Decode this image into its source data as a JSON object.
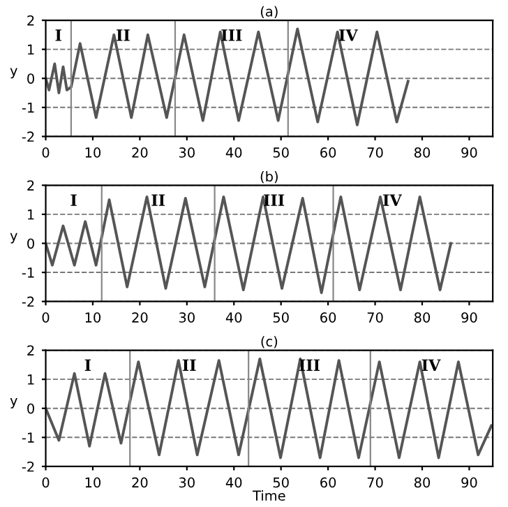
{
  "chart_data": [
    {
      "type": "line",
      "title": "(a)",
      "ylabel": "y",
      "xlim": [
        0,
        95
      ],
      "ylim": [
        -2,
        2
      ],
      "xticks": [
        0,
        10,
        20,
        30,
        40,
        50,
        60,
        70,
        80,
        90
      ],
      "yticks": [
        -2,
        -1,
        0,
        1,
        2
      ],
      "grid": "y",
      "line_style": "solid",
      "marker": "none",
      "series": [
        {
          "color": "#555555",
          "x": [
            0,
            0.7,
            1.9,
            2.8,
            3.7,
            4.5,
            5.4,
            7.3,
            10.7,
            14.5,
            18.2,
            21.7,
            25.7,
            29.4,
            33.4,
            37.1,
            41,
            45.2,
            49.4,
            53.5,
            57.8,
            62,
            66.2,
            70.4,
            74.6,
            77
          ],
          "values": [
            0,
            -0.4,
            0.5,
            -0.5,
            0.4,
            -0.4,
            -0.3,
            1.2,
            -1.35,
            1.5,
            -1.35,
            1.5,
            -1.35,
            1.5,
            -1.45,
            1.6,
            -1.45,
            1.6,
            -1.45,
            1.7,
            -1.5,
            1.6,
            -1.6,
            1.6,
            -1.5,
            -0.1
          ]
        }
      ],
      "ref_lines": [
        {
          "axis": "x",
          "value": 5.4,
          "color": "#888888"
        },
        {
          "axis": "x",
          "value": 27.5,
          "color": "#888888"
        },
        {
          "axis": "x",
          "value": 51.5,
          "color": "#888888"
        }
      ],
      "annotations": [
        "I",
        "II",
        "III",
        "IV"
      ]
    },
    {
      "type": "line",
      "title": "(b)",
      "ylabel": "y",
      "xlim": [
        0,
        95
      ],
      "ylim": [
        -2,
        2
      ],
      "xticks": [
        0,
        10,
        20,
        30,
        40,
        50,
        60,
        70,
        80,
        90
      ],
      "yticks": [
        -2,
        -1,
        0,
        1,
        2
      ],
      "grid": "y",
      "line_style": "solid",
      "marker": "none",
      "series": [
        {
          "color": "#555555",
          "x": [
            0,
            1.4,
            3.7,
            6.1,
            8.4,
            10.7,
            13.5,
            17.3,
            21.5,
            25.5,
            29.7,
            33.8,
            37.8,
            42,
            46.2,
            50.2,
            54.6,
            58.6,
            62.7,
            66.7,
            71.1,
            75.4,
            79.5,
            83.8,
            86.1
          ],
          "values": [
            0,
            -0.75,
            0.6,
            -0.75,
            0.75,
            -0.75,
            1.5,
            -1.5,
            1.6,
            -1.55,
            1.55,
            -1.5,
            1.6,
            -1.6,
            1.6,
            -1.55,
            1.55,
            -1.7,
            1.6,
            -1.6,
            1.6,
            -1.6,
            1.6,
            -1.6,
            0
          ]
        }
      ],
      "ref_lines": [
        {
          "axis": "x",
          "value": 11.9,
          "color": "#888888"
        },
        {
          "axis": "x",
          "value": 35.9,
          "color": "#888888"
        },
        {
          "axis": "x",
          "value": 61.1,
          "color": "#888888"
        }
      ],
      "annotations": [
        "I",
        "II",
        "III",
        "IV"
      ]
    },
    {
      "type": "line",
      "title": "(c)",
      "xlabel": "Time",
      "ylabel": "y",
      "xlim": [
        0,
        95
      ],
      "ylim": [
        -2,
        2
      ],
      "xticks": [
        0,
        10,
        20,
        30,
        40,
        50,
        60,
        70,
        80,
        90
      ],
      "yticks": [
        -2,
        -1,
        0,
        1,
        2
      ],
      "grid": "y",
      "line_style": "solid",
      "marker": "none",
      "series": [
        {
          "color": "#555555",
          "x": [
            0,
            2.8,
            6.1,
            9.3,
            12.6,
            16,
            19.7,
            24.1,
            28.2,
            32.2,
            36.8,
            41,
            45.5,
            49.9,
            54.1,
            58.3,
            62.3,
            66.5,
            70.9,
            75.1,
            79.5,
            83.5,
            87.7,
            91.9,
            94.7
          ],
          "values": [
            0,
            -1.1,
            1.2,
            -1.3,
            1.2,
            -1.2,
            1.6,
            -1.6,
            1.65,
            -1.6,
            1.65,
            -1.6,
            1.7,
            -1.7,
            1.7,
            -1.7,
            1.65,
            -1.7,
            1.6,
            -1.7,
            1.6,
            -1.7,
            1.6,
            -1.6,
            -0.6
          ]
        }
      ],
      "ref_lines": [
        {
          "axis": "x",
          "value": 17.9,
          "color": "#888888"
        },
        {
          "axis": "x",
          "value": 43.1,
          "color": "#888888"
        },
        {
          "axis": "x",
          "value": 69,
          "color": "#888888"
        }
      ],
      "annotations": [
        "I",
        "II",
        "III",
        "IV"
      ]
    }
  ]
}
